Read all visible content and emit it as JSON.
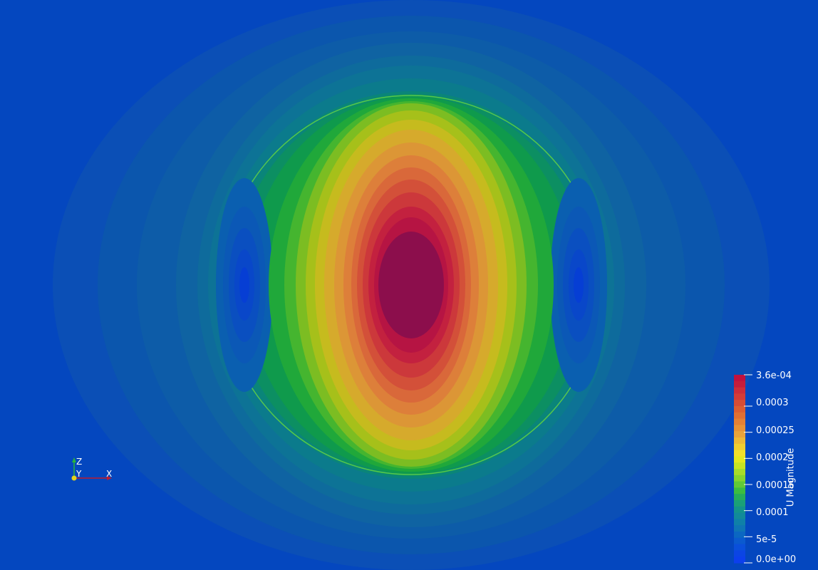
{
  "colors": {
    "background": "#0447bf",
    "field_contours": [
      "#0b4fb6",
      "#0b56ad",
      "#0d5ca8",
      "#0f63a2",
      "#0e6b9c",
      "#0d7396",
      "#0b7b8c",
      "#0a8579",
      "#0c8f62",
      "#0f9a4c",
      "#20a83a",
      "#45b52f",
      "#7cbd22",
      "#a6c01a",
      "#c6bb1e",
      "#d6aa2c",
      "#dc9636",
      "#dd7f3a",
      "#d9683a",
      "#d35039",
      "#cc383b",
      "#c3213f",
      "#b61443",
      "#8c0e4c"
    ],
    "vortex_contours": [
      "#0a5fb0",
      "#0b58b6",
      "#0a4fc0",
      "#0947c9",
      "#063ed4"
    ]
  },
  "colorbar": {
    "title": "U Magnitude",
    "tick_labels": [
      "3.6e-04",
      "0.0003",
      "0.00025",
      "0.0002",
      "0.00015",
      "0.0001",
      "5e-5",
      "0.0e+00"
    ],
    "tick_values": [
      0.00036,
      0.0003,
      0.00025,
      0.0002,
      0.00015,
      0.0001,
      5e-05,
      0
    ],
    "range": [
      0,
      0.00036
    ],
    "bands": [
      "#c1113f",
      "#c51d3c",
      "#cd2d3a",
      "#d33c37",
      "#d84d34",
      "#dd5e32",
      "#e06f33",
      "#e38035",
      "#e69237",
      "#e9a33a",
      "#edb836",
      "#f0cd30",
      "#f2e02a",
      "#e3e81f",
      "#c6e424",
      "#a6dd2a",
      "#84d52f",
      "#60ca36",
      "#3cbd41",
      "#25ad5c",
      "#1aa077",
      "#13938b",
      "#118a9a",
      "#0f80a8",
      "#0e74b5",
      "#0b67c2",
      "#0a5acf",
      "#0a4fdb",
      "#0b45e4",
      "#0c3fed"
    ]
  },
  "axes": {
    "z_label": "Z",
    "y_label": "Y",
    "x_label": "X",
    "z_color": "#2ab53c",
    "y_color": "#e3d21c",
    "x_color": "#c01c2e"
  }
}
